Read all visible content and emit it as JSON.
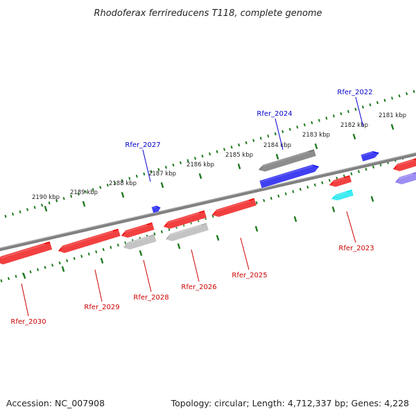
{
  "title": "Rhodoferax ferrireducens T118, complete genome",
  "footer": {
    "accession": "Accession: NC_007908",
    "summary": "Topology: circular; Length: 4,712,337 bp; Genes: 4,228"
  },
  "colors": {
    "strand_plus": "#0000ee",
    "strand_minus": "#ee0000",
    "other_plus": "#666666",
    "other_minus": "#b0b0b0",
    "rna": "#00e5ee",
    "misc": "#7b68ee",
    "ticks": "#1e7a1e",
    "backbone": "#808080",
    "label_top": "#0000cc",
    "label_bottom": "#cc0000"
  },
  "ticks": [
    {
      "label": "2181 kbp"
    },
    {
      "label": "2182 kbp"
    },
    {
      "label": "2183 kbp"
    },
    {
      "label": "2184 kbp"
    },
    {
      "label": "2185 kbp"
    },
    {
      "label": "2186 kbp"
    },
    {
      "label": "2187 kbp"
    },
    {
      "label": "2188 kbp"
    },
    {
      "label": "2189 kbp"
    },
    {
      "label": "2190 kbp"
    }
  ],
  "genes": [
    {
      "name": "Rfer_2022",
      "strand": "plus"
    },
    {
      "name": "Rfer_2024",
      "strand": "plus"
    },
    {
      "name": "Rfer_2027",
      "strand": "plus"
    },
    {
      "name": "Rfer_2023",
      "strand": "minus"
    },
    {
      "name": "Rfer_2025",
      "strand": "minus"
    },
    {
      "name": "Rfer_2026",
      "strand": "minus"
    },
    {
      "name": "Rfer_2028",
      "strand": "minus"
    },
    {
      "name": "Rfer_2029",
      "strand": "minus"
    },
    {
      "name": "Rfer_2030",
      "strand": "minus"
    }
  ]
}
